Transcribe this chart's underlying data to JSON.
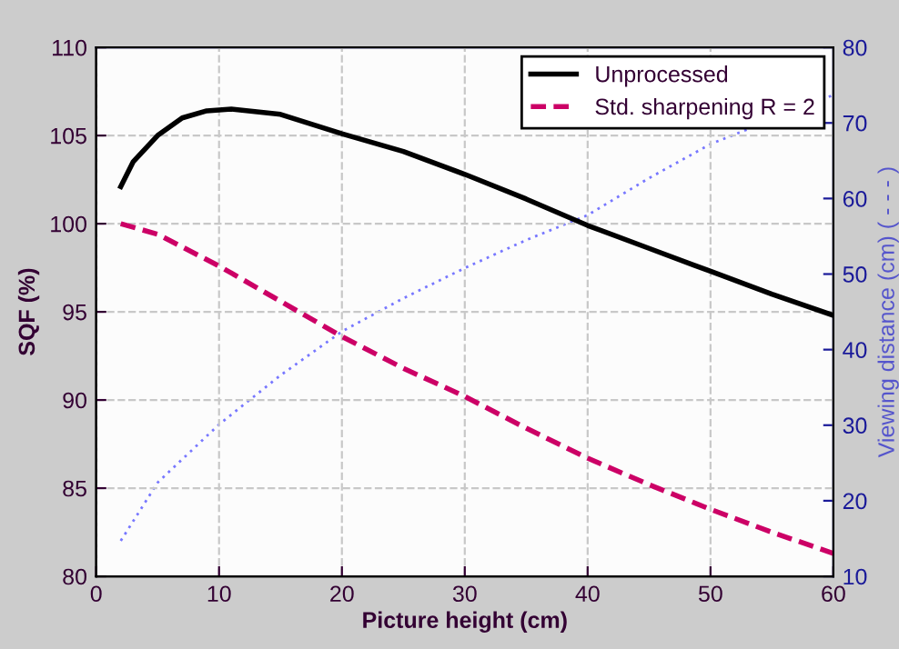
{
  "chart_data": {
    "type": "line",
    "xlabel": "Picture height (cm)",
    "ylabel": "SQF (%)",
    "y2label": "Viewing distance (cm) ( - - - )",
    "xlim": [
      0,
      60
    ],
    "xticks": [
      0,
      10,
      20,
      30,
      40,
      50,
      60
    ],
    "ylim": [
      80,
      110
    ],
    "yticks": [
      80,
      85,
      90,
      95,
      100,
      105,
      110
    ],
    "y2lim": [
      10,
      80
    ],
    "y2ticks": [
      10,
      20,
      30,
      40,
      50,
      60,
      70,
      80
    ],
    "grid": true,
    "legend": "top right",
    "marker": "none",
    "series": [
      {
        "name": "Unprocessed",
        "color": "#000000",
        "line_style": "solid",
        "x": [
          2,
          3,
          5,
          7,
          9,
          11,
          15,
          20,
          25,
          30,
          35,
          40,
          45,
          50,
          55,
          60
        ],
        "values": [
          102.1,
          103.5,
          105.0,
          106.0,
          106.4,
          106.5,
          106.2,
          105.1,
          104.1,
          102.8,
          101.4,
          99.9,
          98.6,
          97.3,
          96.0,
          94.8
        ]
      },
      {
        "name": "Std. sharpening R = 2",
        "color": "#cc0066",
        "line_style": "dashed",
        "x": [
          2,
          5,
          10,
          15,
          20,
          25,
          30,
          35,
          40,
          45,
          50,
          55,
          60
        ],
        "values": [
          100.0,
          99.4,
          97.6,
          95.6,
          93.6,
          91.8,
          90.2,
          88.4,
          86.7,
          85.2,
          83.8,
          82.5,
          81.3
        ]
      },
      {
        "color": "#7777ff",
        "line_style": "dotted",
        "axis": "y2",
        "x": [
          2,
          5,
          10,
          15,
          20,
          25,
          30,
          35,
          40,
          45,
          50,
          60
        ],
        "values": [
          14.7,
          22.4,
          30.1,
          36.6,
          42.4,
          46.8,
          50.8,
          54.5,
          57.8,
          62.7,
          67.2,
          73.7
        ]
      }
    ]
  }
}
